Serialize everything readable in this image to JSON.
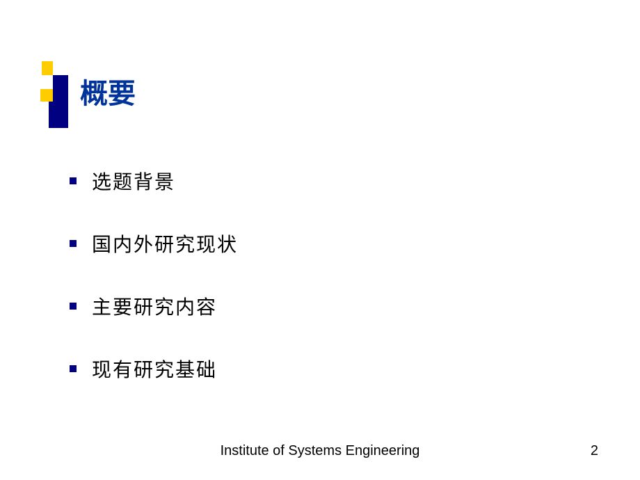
{
  "slide": {
    "title": "概要",
    "bullets": [
      "选题背景",
      "国内外研究现状",
      "主要研究内容",
      "现有研究基础"
    ],
    "footer": "Institute of Systems Engineering",
    "page_number": "2"
  },
  "colors": {
    "title_color": "#003399",
    "bullet_marker": "#000080",
    "accent_yellow": "#ffcc00",
    "accent_navy": "#000080",
    "text": "#000000",
    "background": "#ffffff"
  },
  "typography": {
    "title_fontsize": 40,
    "bullet_fontsize": 28,
    "footer_fontsize": 20
  }
}
